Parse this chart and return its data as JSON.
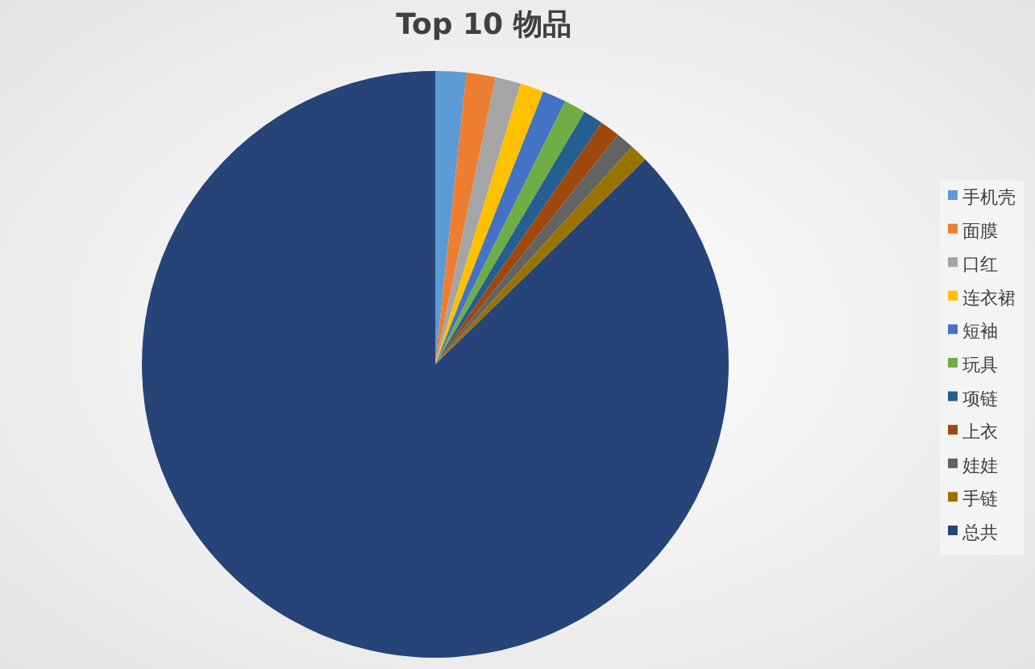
{
  "chart_data": {
    "type": "pie",
    "title": "Top 10 物品",
    "categories": [
      "手机壳",
      "面膜",
      "口红",
      "连衣裙",
      "短袖",
      "玩具",
      "项链",
      "上衣",
      "娃娃",
      "手链",
      "总共"
    ],
    "values": [
      1.7,
      1.6,
      1.4,
      1.3,
      1.3,
      1.2,
      1.1,
      1.1,
      1.0,
      1.0,
      87.3
    ],
    "colors": [
      "#5b9bd5",
      "#ed7d31",
      "#a5a5a5",
      "#ffc000",
      "#4472c4",
      "#70ad47",
      "#255e91",
      "#9e480e",
      "#636363",
      "#997300",
      "#264478"
    ],
    "legend": "right"
  }
}
